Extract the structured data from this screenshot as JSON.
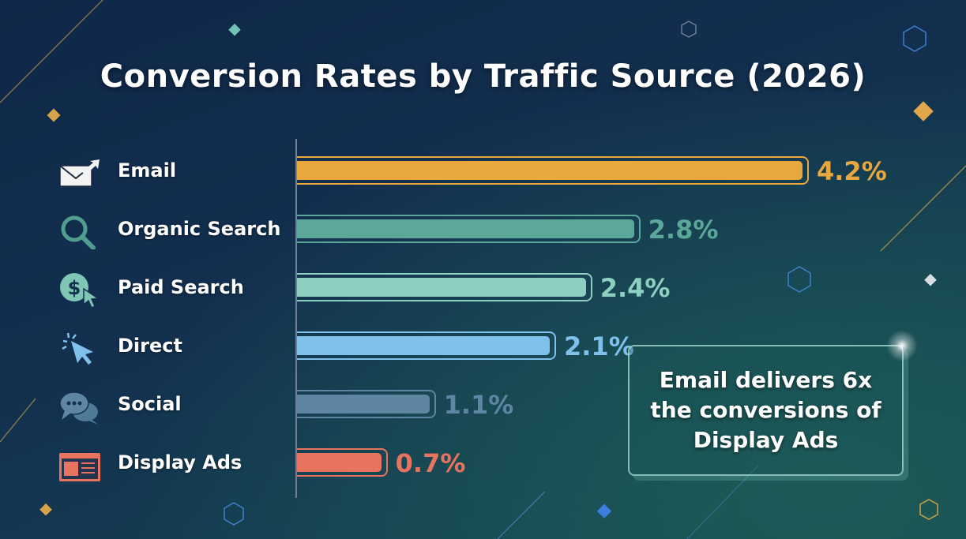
{
  "chart_data": {
    "type": "bar",
    "orientation": "horizontal",
    "title": "Conversion Rates by Traffic Source (2026)",
    "unit": "%",
    "categories": [
      "Email",
      "Organic Search",
      "Paid Search",
      "Direct",
      "Social",
      "Display Ads"
    ],
    "values": [
      4.2,
      2.8,
      2.4,
      2.1,
      1.1,
      0.7
    ],
    "value_labels": [
      "4.2%",
      "2.8%",
      "2.4%",
      "2.1%",
      "1.1%",
      "0.7%"
    ],
    "icons": [
      "envelope-icon",
      "magnifier-icon",
      "dollar-cursor-icon",
      "click-cursor-icon",
      "chat-bubbles-icon",
      "browser-ad-icon"
    ],
    "colors": [
      "#E8A83E",
      "#5BA89A",
      "#8DCFC0",
      "#7FC1EA",
      "#5E86A3",
      "#E8735E"
    ],
    "xlim": [
      0,
      4.2
    ],
    "grid": false,
    "legend": "none",
    "annotation": "Email delivers 6x the conversions of Display Ads"
  }
}
